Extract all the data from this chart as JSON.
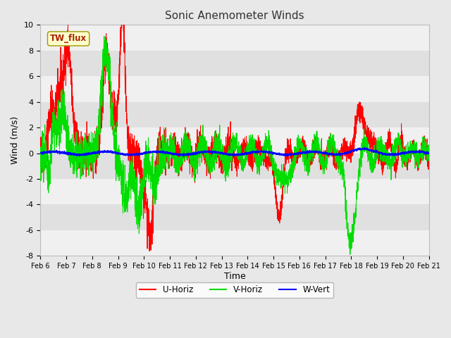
{
  "title": "Sonic Anemometer Winds",
  "xlabel": "Time",
  "ylabel": "Wind (m/s)",
  "ylim": [
    -8,
    10
  ],
  "xlim": [
    0,
    15
  ],
  "fig_bg_color": "#e8e8e8",
  "plot_bg_color": "#e8e8e8",
  "u_color": "#ff0000",
  "v_color": "#00dd00",
  "w_color": "#0000ff",
  "legend_label_u": "U-Horiz",
  "legend_label_v": "V-Horiz",
  "legend_label_w": "W-Vert",
  "site_label": "TW_flux",
  "xtick_labels": [
    "Feb 6",
    "Feb 7",
    "Feb 8",
    "Feb 9",
    "Feb 10",
    "Feb 11",
    "Feb 12",
    "Feb 13",
    "Feb 14",
    "Feb 15",
    "Feb 16",
    "Feb 17",
    "Feb 18",
    "Feb 19",
    "Feb 20",
    "Feb 21"
  ],
  "ytick_values": [
    -8,
    -6,
    -4,
    -2,
    0,
    2,
    4,
    6,
    8,
    10
  ],
  "band_colors": [
    "#f0f0f0",
    "#e0e0e0"
  ]
}
